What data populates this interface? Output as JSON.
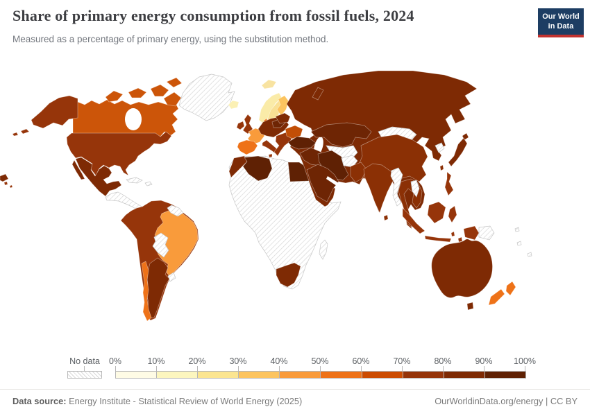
{
  "header": {
    "title": "Share of primary energy consumption from fossil fuels, 2024",
    "subtitle": "Measured as a percentage of primary energy, using the substitution method.",
    "logo": {
      "line1": "Our World",
      "line2": "in Data",
      "bg_color": "#1d3d63",
      "accent_color": "#c2322f"
    }
  },
  "legend": {
    "no_data_label": "No data",
    "tick_labels": [
      "0%",
      "10%",
      "20%",
      "30%",
      "40%",
      "50%",
      "60%",
      "70%",
      "80%",
      "90%",
      "100%"
    ],
    "bin_colors": [
      "#FEFBE5",
      "#FCF6BF",
      "#FBE591",
      "#FCC45F",
      "#F99B3B",
      "#EE7218",
      "#CC4C02",
      "#96350A",
      "#7E2A04",
      "#5F2104"
    ]
  },
  "footer": {
    "source_label": "Data source:",
    "source_text": " Energy Institute - Statistical Review of World Energy (2025)",
    "credit": "OurWorldinData.org/energy | CC BY"
  },
  "chart_data": {
    "type": "heatmap",
    "subtype": "choropleth_world_map",
    "title": "Share of primary energy consumption from fossil fuels, 2024",
    "unit": "% of primary energy (substitution method)",
    "year": 2024,
    "legend_bins": {
      "edges_pct": [
        0,
        10,
        20,
        30,
        40,
        50,
        60,
        70,
        80,
        90,
        100
      ],
      "colors": [
        "#FEFBE5",
        "#FCF6BF",
        "#FBE591",
        "#FCC45F",
        "#F99B3B",
        "#EE7218",
        "#CC4C02",
        "#96350A",
        "#7E2A04",
        "#5F2104"
      ],
      "no_data_style": "diagonal-hatch"
    },
    "values": [
      {
        "entity": "United States",
        "share": "80-90%"
      },
      {
        "entity": "Canada",
        "share": "60-70%"
      },
      {
        "entity": "Mexico",
        "share": "80-90%"
      },
      {
        "entity": "Greenland",
        "share": "No data"
      },
      {
        "entity": "Central America",
        "share": "No data"
      },
      {
        "entity": "Cuba & Caribbean",
        "share": "No data"
      },
      {
        "entity": "Colombia",
        "share": "70-80%"
      },
      {
        "entity": "Venezuela",
        "share": "70-80%"
      },
      {
        "entity": "Ecuador",
        "share": "70-80%"
      },
      {
        "entity": "Peru",
        "share": "70-80%"
      },
      {
        "entity": "Guyana & Suriname",
        "share": "No data"
      },
      {
        "entity": "Brazil",
        "share": "40-50%"
      },
      {
        "entity": "Bolivia",
        "share": "No data"
      },
      {
        "entity": "Paraguay",
        "share": "No data"
      },
      {
        "entity": "Uruguay",
        "share": "No data"
      },
      {
        "entity": "Chile",
        "share": "50-60%"
      },
      {
        "entity": "Argentina",
        "share": "80-90%"
      },
      {
        "entity": "Iceland",
        "share": "10-20%"
      },
      {
        "entity": "Norway",
        "share": "10-20%"
      },
      {
        "entity": "Sweden",
        "share": "20-30%"
      },
      {
        "entity": "Finland",
        "share": "30-40%"
      },
      {
        "entity": "United Kingdom",
        "share": "70-80%"
      },
      {
        "entity": "Ireland",
        "share": "70-80%"
      },
      {
        "entity": "France",
        "share": "40-50%"
      },
      {
        "entity": "Spain",
        "share": "50-60%"
      },
      {
        "entity": "Portugal",
        "share": "50-60%"
      },
      {
        "entity": "Germany",
        "share": "70-80%"
      },
      {
        "entity": "Poland",
        "share": "90-100%"
      },
      {
        "entity": "Italy",
        "share": "70-80%"
      },
      {
        "entity": "Balkans & Greece",
        "share": "70-80%"
      },
      {
        "entity": "Ukraine",
        "share": "60-70%"
      },
      {
        "entity": "Turkey",
        "share": "90-100%"
      },
      {
        "entity": "Russia",
        "share": "80-90%"
      },
      {
        "entity": "Kazakhstan",
        "share": "90-100%"
      },
      {
        "entity": "Turkmenistan",
        "share": "No data"
      },
      {
        "entity": "Afghanistan",
        "share": "No data"
      },
      {
        "entity": "Mongolia",
        "share": "No data"
      },
      {
        "entity": "China",
        "share": "80-90%"
      },
      {
        "entity": "Japan",
        "share": "80-90%"
      },
      {
        "entity": "South Korea",
        "share": "80-90%"
      },
      {
        "entity": "North Korea",
        "share": "No data"
      },
      {
        "entity": "India",
        "share": "80-90%"
      },
      {
        "entity": "Pakistan",
        "share": "80-90%"
      },
      {
        "entity": "Sri Lanka",
        "share": "80-90%"
      },
      {
        "entity": "Iran",
        "share": "90-100%"
      },
      {
        "entity": "Iraq & Syria",
        "share": "90-100%"
      },
      {
        "entity": "Saudi Arabia",
        "share": "90-100%"
      },
      {
        "entity": "Egypt",
        "share": "90-100%"
      },
      {
        "entity": "Algeria",
        "share": "90-100%"
      },
      {
        "entity": "Morocco",
        "share": "80-90%"
      },
      {
        "entity": "Libya",
        "share": "No data"
      },
      {
        "entity": "Sub-Saharan Africa (most)",
        "share": "No data"
      },
      {
        "entity": "South Africa",
        "share": "80-90%"
      },
      {
        "entity": "Madagascar",
        "share": "No data"
      },
      {
        "entity": "Myanmar",
        "share": "No data"
      },
      {
        "entity": "Laos",
        "share": "No data"
      },
      {
        "entity": "Thailand & Vietnam",
        "share": "80-90%"
      },
      {
        "entity": "Malaysia & Indonesia",
        "share": "70-80%"
      },
      {
        "entity": "Philippines",
        "share": "70-80%"
      },
      {
        "entity": "Papua New Guinea",
        "share": "No data"
      },
      {
        "entity": "Australia",
        "share": "80-90%"
      },
      {
        "entity": "New Zealand",
        "share": "50-60%"
      },
      {
        "entity": "Pacific islands",
        "share": "No data"
      }
    ],
    "country_colors": {
      "usa": "#96350A",
      "canada": "#CC5509",
      "mexico": "#7E2A04",
      "central_america": "nodata",
      "caribbean": "nodata",
      "greenland": "nodata",
      "iceland": "#FBF0B4",
      "svalbard": "#F8E3A1",
      "andean_states": "#96350A",
      "brazil": "#F99B3B",
      "guyanas": "nodata",
      "bolivia_paraguay": "nodata",
      "uruguay": "nodata",
      "argentina": "#7E2A04",
      "chile": "#EE7218",
      "africa_nodata": "nodata",
      "morocco": "#7E2A04",
      "algeria": "#5F2104",
      "egypt": "#5F2104",
      "south_africa": "#7E2A04",
      "madagascar": "nodata",
      "norway": "#FAEBA8",
      "sweden": "#F9E094",
      "finland": "#FCC45F",
      "denmark": "#EE7218",
      "uk": "#96350A",
      "ireland": "#96350A",
      "france": "#F99B3B",
      "iberia": "#EE7218",
      "central_europe": "#7E2A04",
      "poland": "#6E2504",
      "italy": "#96350A",
      "balkans": "#96350A",
      "ukraine": "#C24E06",
      "belarus_baltics": "#7E2A04",
      "russia": "#7E2A04",
      "kazakhstan": "#6E2504",
      "central_asia": "nodata",
      "mongolia": "nodata",
      "china": "#8B3005",
      "india": "#8B3005",
      "sri_lanka": "#8B3005",
      "pakistan": "#8B3005",
      "afghanistan": "nodata",
      "iran": "#5F2104",
      "middle_east": "#6E2504",
      "arabia": "#6E2504",
      "turkey": "#5F2104",
      "myanmar": "nodata",
      "laos": "nodata",
      "indochina": "#8B3005",
      "north_korea": "nodata",
      "japan": "#7E2A04",
      "taiwan": "#8B3005",
      "philippines": "#96350A",
      "indonesia": "#96350A",
      "png_west": "#96350A",
      "png_east": "nodata",
      "australia": "#7E2A04",
      "new_zealand": "#EE7218",
      "pacific_islands": "nodata"
    }
  }
}
